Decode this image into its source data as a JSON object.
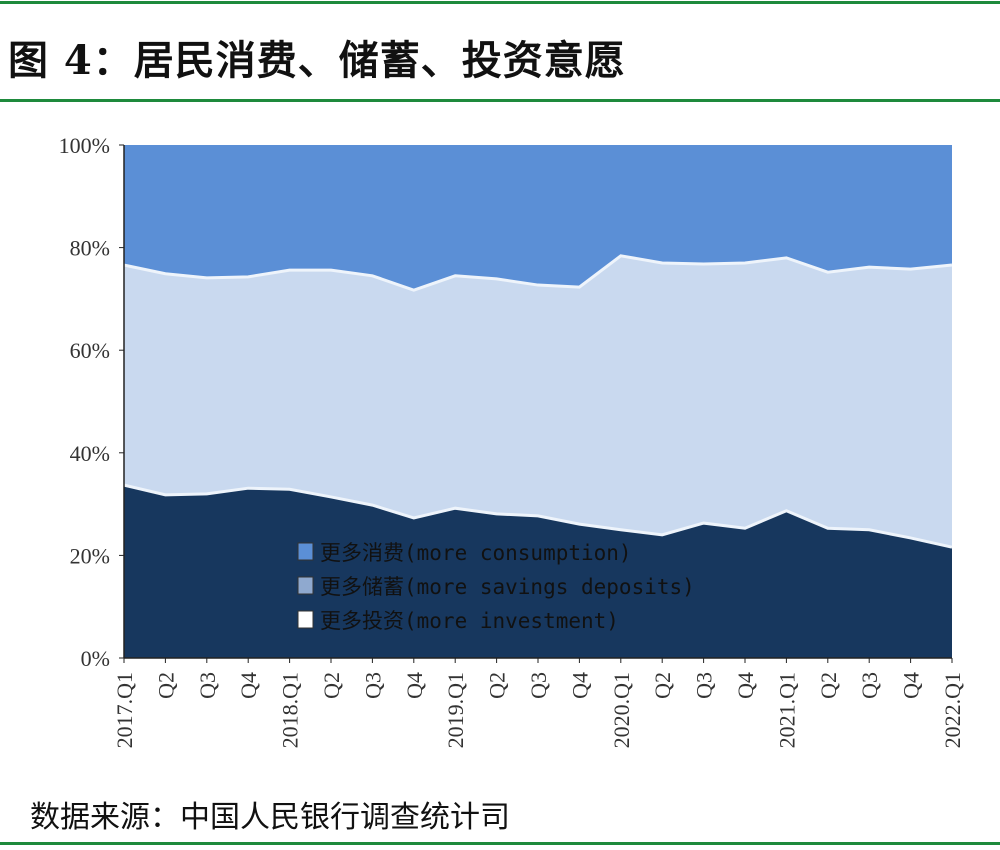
{
  "title": "图 4：居民消费、储蓄、投资意愿",
  "source": "数据来源：中国人民银行调查统计司",
  "chart_data": {
    "type": "area",
    "stacked": "100%",
    "title": "",
    "xlabel": "",
    "ylabel": "",
    "ylim": [
      0,
      100
    ],
    "yticks": [
      "0%",
      "20%",
      "40%",
      "60%",
      "80%",
      "100%"
    ],
    "categories": [
      "2017.Q1",
      "Q2",
      "Q3",
      "Q4",
      "2018.Q1",
      "Q2",
      "Q3",
      "Q4",
      "2019.Q1",
      "Q2",
      "Q3",
      "Q4",
      "2020.Q1",
      "Q2",
      "Q3",
      "Q4",
      "2021.Q1",
      "Q2",
      "Q3",
      "Q4",
      "2022.Q1"
    ],
    "legend_position": "bottom-left-inside",
    "series": [
      {
        "name": "更多投资(more investment)",
        "color": "#17375e",
        "legend_swatch": "#ffffff",
        "values": [
          33.7,
          31.8,
          32.0,
          33.1,
          32.9,
          31.4,
          29.8,
          27.3,
          29.2,
          28.1,
          27.7,
          26.1,
          25.0,
          24.0,
          26.3,
          25.3,
          28.7,
          25.3,
          25.0,
          23.4,
          21.6
        ]
      },
      {
        "name": "更多储蓄(more savings deposits)",
        "color": "#c9d9ef",
        "legend_swatch": "#8fa9cf",
        "values": [
          42.9,
          43.1,
          42.1,
          41.2,
          42.7,
          44.2,
          44.7,
          44.4,
          45.3,
          45.8,
          45.0,
          46.2,
          53.4,
          53.0,
          50.5,
          51.7,
          49.3,
          49.9,
          51.2,
          52.4,
          55.0
        ]
      },
      {
        "name": "更多消费(more consumption)",
        "color": "#5b8fd6",
        "legend_swatch": "#5b8fd6",
        "values": [
          23.4,
          25.1,
          25.9,
          25.7,
          24.4,
          24.4,
          25.5,
          28.3,
          25.5,
          26.1,
          27.3,
          27.7,
          21.6,
          23.0,
          23.2,
          23.0,
          22.0,
          24.8,
          23.8,
          24.2,
          23.4
        ]
      }
    ]
  }
}
